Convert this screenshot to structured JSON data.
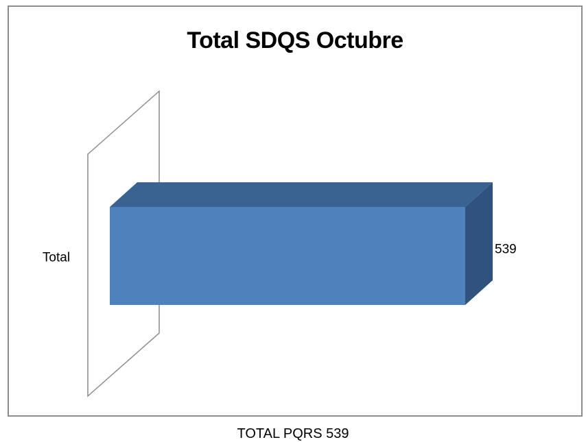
{
  "chart_data": {
    "type": "bar",
    "orientation": "horizontal",
    "style": "3d",
    "title": "Total SDQS Octubre",
    "categories": [
      "Total"
    ],
    "values": [
      539
    ],
    "data_labels": [
      "539"
    ],
    "xlabel": "",
    "ylabel": "",
    "grid": false,
    "legend": "none",
    "colors": {
      "bar_front": "#4f81bd",
      "bar_top": "#3b6391",
      "bar_side": "#2f527e",
      "axis_wall": "#8c8c8c",
      "frame": "#8c8c8c"
    }
  },
  "footer": {
    "caption": "TOTAL PQRS 539"
  }
}
